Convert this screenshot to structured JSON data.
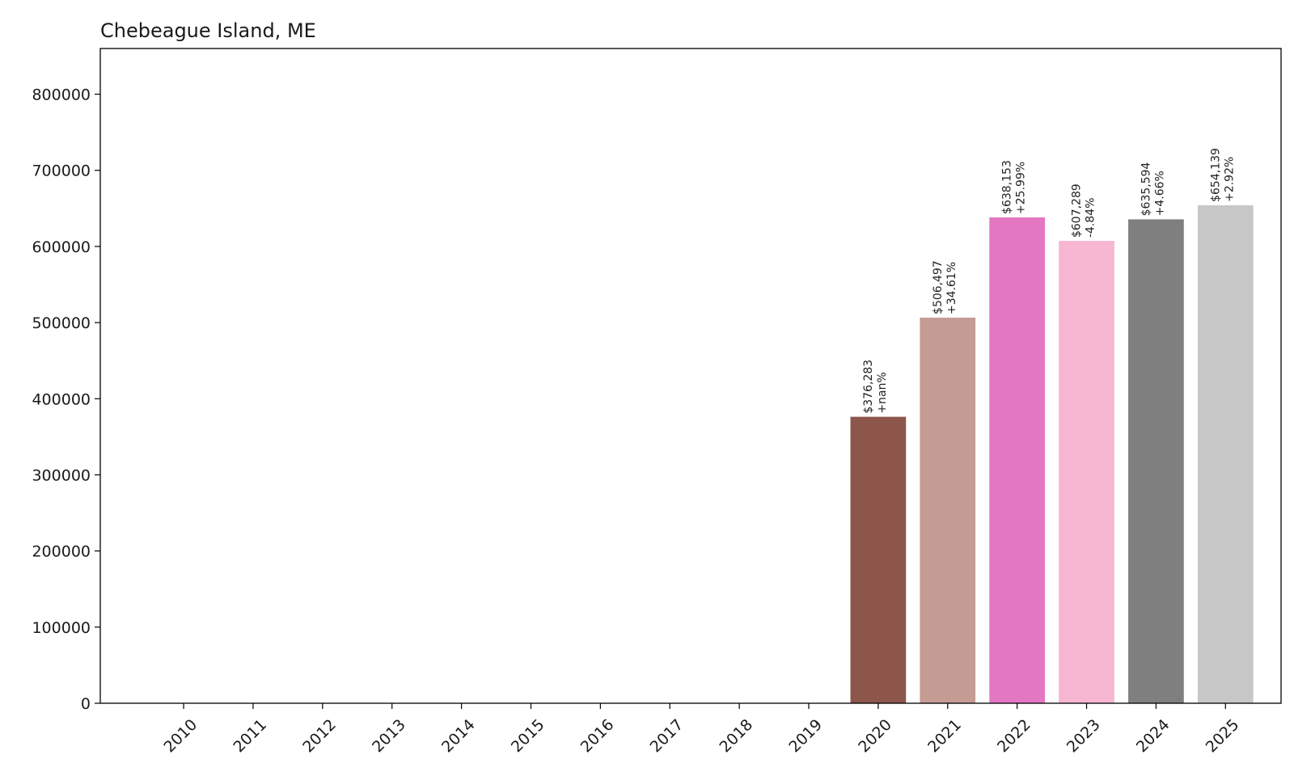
{
  "chart_data": {
    "type": "bar",
    "title": "Chebeague Island, ME",
    "xlabel": "",
    "ylabel": "",
    "categories": [
      "2010",
      "2011",
      "2012",
      "2013",
      "2014",
      "2015",
      "2016",
      "2017",
      "2018",
      "2019",
      "2020",
      "2021",
      "2022",
      "2023",
      "2024",
      "2025"
    ],
    "values": [
      0,
      0,
      0,
      0,
      0,
      0,
      0,
      0,
      0,
      0,
      376283,
      506497,
      638153,
      607289,
      635594,
      654139
    ],
    "value_labels": [
      "",
      "",
      "",
      "",
      "",
      "",
      "",
      "",
      "",
      "",
      "$376,283",
      "$506,497",
      "$638,153",
      "$607,289",
      "$635,594",
      "$654,139"
    ],
    "change_labels": [
      "",
      "",
      "",
      "",
      "",
      "",
      "",
      "",
      "",
      "",
      "+nan%",
      "+34.61%",
      "+25.99%",
      "-4.84%",
      "+4.66%",
      "+2.92%"
    ],
    "colors": [
      "#1f77b4",
      "#ff7f0e",
      "#2ca02c",
      "#d62728",
      "#9467bd",
      "#8c564b",
      "#e377c2",
      "#7f7f7f",
      "#bcbd22",
      "#17becf",
      "#8c564b",
      "#c49c94",
      "#e377c2",
      "#f7b6d2",
      "#7f7f7f",
      "#c7c7c7"
    ],
    "ylim": [
      0,
      860000
    ],
    "yticks": [
      0,
      100000,
      200000,
      300000,
      400000,
      500000,
      600000,
      700000,
      800000
    ],
    "ytick_labels": [
      "0",
      "100000",
      "200000",
      "300000",
      "400000",
      "500000",
      "600000",
      "700000",
      "800000"
    ],
    "grid": false,
    "legend": "none"
  }
}
